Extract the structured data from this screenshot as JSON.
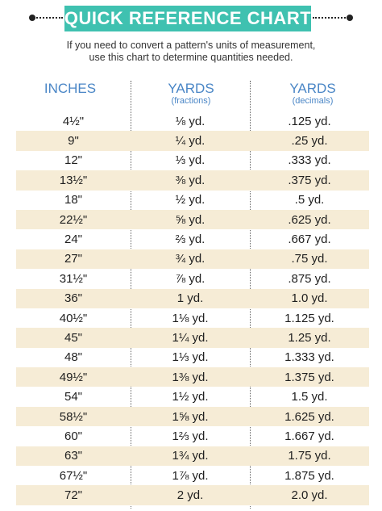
{
  "title": "QUICK REFERENCE CHART",
  "subtitle": {
    "line1": "If you need to convert a pattern's units of measurement,",
    "line2": "use this chart to determine quantities needed."
  },
  "columns": [
    {
      "label": "INCHES",
      "sub": ""
    },
    {
      "label": "YARDS",
      "sub": "(fractions)"
    },
    {
      "label": "YARDS",
      "sub": "(decimals)"
    }
  ],
  "colors": {
    "banner": "#3fc1b0",
    "header_text": "#4a86c6",
    "row_shade": "#f6ecd6"
  },
  "rows": [
    {
      "inches": "4½\"",
      "fraction": "⅛ yd.",
      "decimal": ".125 yd."
    },
    {
      "inches": "9\"",
      "fraction": "¼ yd.",
      "decimal": ".25 yd."
    },
    {
      "inches": "12\"",
      "fraction": "⅓ yd.",
      "decimal": ".333 yd."
    },
    {
      "inches": "13½\"",
      "fraction": "⅜ yd.",
      "decimal": ".375 yd."
    },
    {
      "inches": "18\"",
      "fraction": "½ yd.",
      "decimal": ".5 yd."
    },
    {
      "inches": "22½\"",
      "fraction": "⅝ yd.",
      "decimal": ".625 yd."
    },
    {
      "inches": "24\"",
      "fraction": "⅔ yd.",
      "decimal": ".667 yd."
    },
    {
      "inches": "27\"",
      "fraction": "¾ yd.",
      "decimal": ".75 yd."
    },
    {
      "inches": "31½\"",
      "fraction": "⅞ yd.",
      "decimal": ".875 yd."
    },
    {
      "inches": "36\"",
      "fraction": "1 yd.",
      "decimal": "1.0 yd."
    },
    {
      "inches": "40½\"",
      "fraction": "1⅛ yd.",
      "decimal": "1.125 yd."
    },
    {
      "inches": "45\"",
      "fraction": "1¼ yd.",
      "decimal": "1.25 yd."
    },
    {
      "inches": "48\"",
      "fraction": "1⅓ yd.",
      "decimal": "1.333 yd."
    },
    {
      "inches": "49½\"",
      "fraction": "1⅜ yd.",
      "decimal": "1.375 yd."
    },
    {
      "inches": "54\"",
      "fraction": "1½ yd.",
      "decimal": "1.5 yd."
    },
    {
      "inches": "58½\"",
      "fraction": "1⅝ yd.",
      "decimal": "1.625 yd."
    },
    {
      "inches": "60\"",
      "fraction": "1⅔ yd.",
      "decimal": "1.667 yd."
    },
    {
      "inches": "63\"",
      "fraction": "1¾ yd.",
      "decimal": "1.75 yd."
    },
    {
      "inches": "67½\"",
      "fraction": "1⅞ yd.",
      "decimal": "1.875 yd."
    },
    {
      "inches": "72\"",
      "fraction": "2 yd.",
      "decimal": "2.0 yd."
    }
  ]
}
